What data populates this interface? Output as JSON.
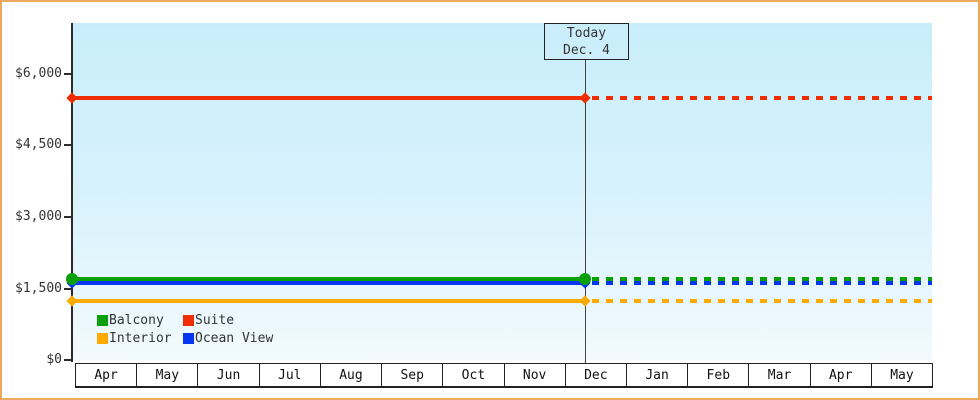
{
  "chart_data": {
    "type": "line",
    "title": "",
    "categories": [
      "Apr",
      "May",
      "Jun",
      "Jul",
      "Aug",
      "Sep",
      "Oct",
      "Nov",
      "Dec",
      "Jan",
      "Feb",
      "Mar",
      "Apr",
      "May"
    ],
    "y_axis": {
      "min": 0,
      "max_visible": 7050,
      "ticks": [
        {
          "value": 0,
          "label": "$0"
        },
        {
          "value": 1500,
          "label": "$1,500"
        },
        {
          "value": 3000,
          "label": "$3,000"
        },
        {
          "value": 4500,
          "label": "$4,500"
        },
        {
          "value": 6000,
          "label": "$6,000"
        }
      ]
    },
    "series": [
      {
        "name": "Ocean View",
        "color": "#0636f2",
        "value": 1620,
        "marker": "diamond",
        "z": 2
      },
      {
        "name": "Balcony",
        "color": "#0aa00a",
        "value": 1700,
        "marker": "circle",
        "z": 3
      },
      {
        "name": "Interior",
        "color": "#ffaa00",
        "value": 1250,
        "marker": "diamond",
        "z": 2
      },
      {
        "name": "Suite",
        "color": "#ee2e00",
        "value": 5500,
        "marker": "diamond",
        "z": 2
      }
    ],
    "line_style": {
      "before_today": "solid",
      "after_today": "dashed"
    },
    "annotation": {
      "title": "Today",
      "subtitle": "Dec. 4",
      "month": "Dec",
      "day": 4
    },
    "legend": {
      "position": "bottom-left",
      "rows": [
        [
          "Balcony",
          "Suite"
        ],
        [
          "Interior",
          "Ocean View"
        ]
      ]
    }
  },
  "colors": {
    "frame_border": "#eba960",
    "plot_bg_top": "#c9eefb",
    "plot_bg_bottom": "#f2fafe",
    "axis": "#2b2b2b",
    "text": "#333333",
    "today_line": "#444444"
  }
}
